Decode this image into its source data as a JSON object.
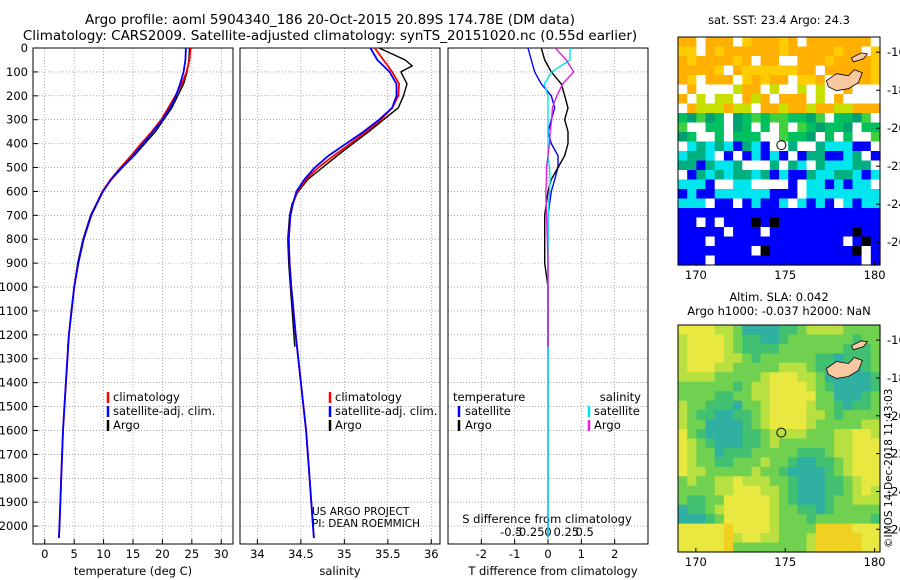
{
  "header": {
    "title_line1": "Argo profile: aoml 5904340_186 20-Oct-2015 20.89S 174.78E (DM data)",
    "title_line2": "Climatology: CARS2009. Satellite-adjusted climatology: synTS_20151020.nc (0.55d earlier)"
  },
  "colors": {
    "climatology": "#ff0000",
    "satellite": "#0000ff",
    "argo": "#000000",
    "satellite_salinity": "#00e5ee",
    "argo_salinity": "#e020e0"
  },
  "chart_data": [
    {
      "id": "temperature",
      "type": "line",
      "xlabel": "temperature (deg C)",
      "ylabel": "depth",
      "xlim": [
        -2,
        32
      ],
      "ylim": [
        2075,
        0
      ],
      "xticks": [
        0,
        5,
        10,
        15,
        20,
        25,
        30
      ],
      "yticks": [
        0,
        100,
        200,
        300,
        400,
        500,
        600,
        700,
        800,
        900,
        1000,
        1100,
        1200,
        1300,
        1400,
        1500,
        1600,
        1700,
        1800,
        1900,
        2000
      ],
      "legend": [
        "climatology",
        "satellite-adj. clim.",
        "Argo"
      ],
      "series": [
        {
          "name": "climatology",
          "depth": [
            0,
            50,
            100,
            150,
            200,
            250,
            300,
            350,
            400,
            450,
            500,
            550,
            600,
            700,
            800,
            900,
            1000,
            1200,
            1400,
            1600,
            1800,
            2000,
            2050
          ],
          "values": [
            24.8,
            24.6,
            24.1,
            23.3,
            22.2,
            21.0,
            19.8,
            18.2,
            16.4,
            14.7,
            12.9,
            11.2,
            9.8,
            7.9,
            6.6,
            5.7,
            5.0,
            4.1,
            3.6,
            3.1,
            2.8,
            2.5,
            2.4
          ]
        },
        {
          "name": "satellite-adj. clim.",
          "depth": [
            0,
            50,
            100,
            150,
            200,
            250,
            300,
            350,
            400,
            450,
            500,
            550,
            600,
            700,
            800,
            900,
            1000,
            1200,
            1400,
            1600,
            1800,
            2000,
            2050
          ],
          "values": [
            24.0,
            23.9,
            23.6,
            23.0,
            22.3,
            21.3,
            20.0,
            18.4,
            16.7,
            15.0,
            13.1,
            11.3,
            9.9,
            7.9,
            6.6,
            5.7,
            5.0,
            4.1,
            3.6,
            3.1,
            2.8,
            2.5,
            2.4
          ]
        },
        {
          "name": "Argo",
          "depth": [
            0,
            50,
            100,
            150,
            200,
            250,
            300,
            350,
            400,
            450,
            500,
            550,
            600,
            700,
            800,
            900,
            1000,
            1100,
            1200,
            1250
          ],
          "values": [
            24.6,
            24.5,
            24.2,
            23.6,
            22.6,
            21.6,
            20.2,
            18.8,
            17.0,
            15.2,
            13.2,
            11.3,
            9.8,
            7.8,
            6.5,
            5.6,
            5.0,
            4.5,
            4.1,
            3.9
          ]
        }
      ]
    },
    {
      "id": "salinity",
      "type": "line",
      "xlabel": "salinity",
      "ylabel": "depth",
      "xlim": [
        33.8,
        36.1
      ],
      "ylim": [
        2075,
        0
      ],
      "xticks": [
        34,
        34.5,
        35,
        35.5,
        36
      ],
      "xticklabels": [
        "34",
        "34.5",
        "35",
        "35.5",
        "36"
      ],
      "legend": [
        "climatology",
        "satellite-adj. clim.",
        "Argo"
      ],
      "annotations": [
        "US ARGO PROJECT",
        "PI: DEAN ROEMMICH"
      ],
      "series": [
        {
          "name": "climatology",
          "depth": [
            0,
            50,
            100,
            150,
            200,
            250,
            300,
            350,
            400,
            450,
            500,
            550,
            600,
            650,
            700,
            800,
            900,
            1000,
            1200,
            1400,
            1600,
            1800,
            2000,
            2050
          ],
          "values": [
            35.35,
            35.45,
            35.55,
            35.63,
            35.62,
            35.55,
            35.42,
            35.25,
            35.07,
            34.88,
            34.7,
            34.56,
            34.46,
            34.41,
            34.38,
            34.36,
            34.37,
            34.39,
            34.44,
            34.5,
            34.56,
            34.6,
            34.64,
            34.65
          ]
        },
        {
          "name": "satellite-adj. clim.",
          "depth": [
            0,
            50,
            100,
            150,
            200,
            250,
            300,
            350,
            400,
            450,
            500,
            550,
            600,
            650,
            700,
            800,
            900,
            1000,
            1200,
            1400,
            1600,
            1800,
            2000,
            2050
          ],
          "values": [
            35.3,
            35.38,
            35.52,
            35.6,
            35.6,
            35.55,
            35.4,
            35.22,
            35.02,
            34.82,
            34.66,
            34.54,
            34.45,
            34.41,
            34.38,
            34.36,
            34.37,
            34.39,
            34.44,
            34.5,
            34.56,
            34.6,
            34.64,
            34.65
          ]
        },
        {
          "name": "Argo",
          "depth": [
            0,
            25,
            50,
            75,
            100,
            150,
            200,
            250,
            300,
            350,
            400,
            450,
            500,
            550,
            600,
            650,
            700,
            800,
            900,
            1000,
            1100,
            1200,
            1250
          ],
          "values": [
            35.4,
            35.55,
            35.7,
            35.78,
            35.65,
            35.72,
            35.68,
            35.62,
            35.45,
            35.28,
            35.1,
            34.92,
            34.75,
            34.58,
            34.47,
            34.4,
            34.37,
            34.35,
            34.36,
            34.38,
            34.4,
            34.42,
            34.43
          ]
        }
      ]
    },
    {
      "id": "difference",
      "type": "line",
      "xlabel": "T difference from climatology",
      "xlabel_top": "S difference from climatology",
      "xlim": [
        -3,
        3
      ],
      "ylim": [
        2075,
        0
      ],
      "xticks": [
        -2,
        -1,
        0,
        1,
        2
      ],
      "xticks_top": [
        -0.5,
        -0.25,
        0,
        0.25,
        0.5
      ],
      "xticklabels_top": [
        "-0.5",
        "-0.25",
        "0",
        "0.25",
        "0.5"
      ],
      "legend_left_title": "temperature",
      "legend_right_title": "salinity",
      "legend_left": [
        "satellite",
        "Argo"
      ],
      "legend_right": [
        "satellite",
        "Argo"
      ],
      "series": [
        {
          "name": "temperature satellite",
          "depth": [
            0,
            50,
            100,
            150,
            200,
            250,
            300,
            350,
            400,
            450,
            500,
            550,
            600,
            700,
            800,
            900,
            1000,
            1200,
            1400,
            1600,
            1800,
            2000,
            2050
          ],
          "values": [
            -0.6,
            -0.5,
            -0.4,
            -0.2,
            0.1,
            0.2,
            0.1,
            0.0,
            0.1,
            0.3,
            0.3,
            0.2,
            0.1,
            0.0,
            0.0,
            0.0,
            0.0,
            0.0,
            0.0,
            0.0,
            0.0,
            0.0,
            0.0
          ]
        },
        {
          "name": "temperature Argo",
          "depth": [
            0,
            50,
            100,
            150,
            200,
            250,
            300,
            350,
            400,
            450,
            500,
            550,
            600,
            700,
            800,
            900,
            1000,
            1100,
            1200,
            1250
          ],
          "values": [
            -0.2,
            -0.1,
            0.1,
            0.4,
            0.5,
            0.6,
            0.5,
            0.6,
            0.6,
            0.5,
            0.3,
            0.1,
            0.0,
            -0.1,
            -0.1,
            -0.1,
            0.0,
            0.0,
            0.0,
            0.0
          ]
        },
        {
          "name": "salinity satellite",
          "depth": [
            0,
            50,
            100,
            150,
            200,
            250,
            300,
            350,
            400,
            450,
            500,
            550,
            600,
            700,
            800,
            900,
            1000,
            1200,
            1400,
            1600,
            1800,
            2000,
            2050
          ],
          "values": [
            0.3,
            0.3,
            0.05,
            -0.05,
            0.0,
            0.0,
            0.0,
            0.0,
            0.0,
            0.0,
            0.02,
            0.03,
            0.02,
            0.0,
            0.0,
            0.0,
            0.0,
            0.0,
            0.0,
            0.0,
            0.0,
            0.0,
            0.0
          ]
        },
        {
          "name": "salinity Argo",
          "depth": [
            0,
            50,
            100,
            150,
            200,
            250,
            300,
            350,
            400,
            450,
            500,
            550,
            600,
            700,
            800,
            900,
            1000,
            1100,
            1200,
            1250
          ],
          "values": [
            0.1,
            0.25,
            0.35,
            0.2,
            0.12,
            0.06,
            0.05,
            0.03,
            0.02,
            0.0,
            -0.02,
            -0.02,
            -0.03,
            -0.02,
            -0.01,
            0.0,
            0.0,
            0.0,
            0.0,
            0.0
          ]
        }
      ]
    },
    {
      "id": "sst-map",
      "type": "heatmap",
      "title": "sat. SST: 23.4 Argo: 24.3",
      "xlim": [
        169,
        180.3
      ],
      "ylim": [
        -27.2,
        -15.2
      ],
      "xticks": [
        170,
        175,
        180
      ],
      "yticks": [
        -16,
        -18,
        -20,
        -22,
        -24,
        -26
      ],
      "marker": {
        "lon": 174.78,
        "lat": -20.89
      }
    },
    {
      "id": "sla-map",
      "type": "heatmap",
      "title": "Altim. SLA: 0.042",
      "subtitle": "Argo h1000: -0.037 h2000: NaN",
      "xlim": [
        169,
        180.3
      ],
      "ylim": [
        -27.2,
        -15.2
      ],
      "xticks": [
        170,
        175,
        180
      ],
      "yticks": [
        -16,
        -18,
        -20,
        -22,
        -24,
        -26
      ],
      "marker": {
        "lon": 174.78,
        "lat": -20.89
      }
    }
  ],
  "credit": "©IMOS 14-Dec-2018 11:43:03"
}
